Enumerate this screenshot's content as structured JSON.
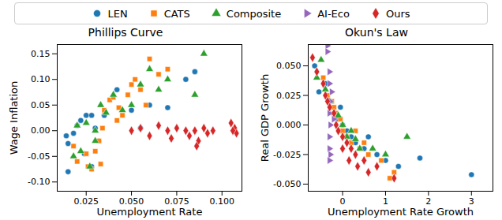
{
  "chart_data": [
    {
      "type": "scatter",
      "title": "Phillips Curve",
      "x_label": "Unemployment Rate",
      "y_label": "Wage Inflation",
      "xlim": [
        0.009,
        0.111
      ],
      "xticks": [
        0.025,
        {
          "value": 0.05,
          "label": "0.050"
        },
        0.075,
        {
          "value": 0.1,
          "label": "0.100"
        }
      ],
      "ylim": [
        -0.118,
        0.168
      ],
      "yticks": [
        {
          "value": -0.1,
          "label": "-0.10"
        },
        -0.05,
        {
          "value": 0,
          "label": "0.00"
        },
        0.05,
        {
          "value": 0.1,
          "label": "0.10"
        },
        0.15
      ],
      "grid": false,
      "series": [
        {
          "name": "LEN",
          "color": "#1f77b4",
          "marker": "circle",
          "x": [
            0.014,
            0.015,
            0.015,
            0.018,
            0.02,
            0.022,
            0.024,
            0.025,
            0.028,
            0.03,
            0.032,
            0.035,
            0.042,
            0.05,
            0.055,
            0.06,
            0.07,
            0.08,
            0.085,
            0.028
          ],
          "y": [
            -0.01,
            -0.025,
            -0.08,
            -0.005,
            0.01,
            0.02,
            -0.045,
            0.03,
            0.03,
            0.005,
            -0.02,
            0.03,
            0.08,
            0.04,
            0.005,
            0.05,
            0.045,
            0.1,
            0.115,
            -0.07
          ]
        },
        {
          "name": "CATS",
          "color": "#ff7f0e",
          "marker": "square",
          "x": [
            0.018,
            0.02,
            0.025,
            0.026,
            0.028,
            0.03,
            0.032,
            0.034,
            0.035,
            0.038,
            0.04,
            0.042,
            0.045,
            0.048,
            0.05,
            0.052,
            0.055,
            0.058,
            0.06,
            0.065,
            0.07,
            0.043,
            0.033
          ],
          "y": [
            -0.03,
            -0.06,
            -0.045,
            -0.07,
            -0.075,
            -0.04,
            -0.02,
            0.005,
            0.04,
            0.06,
            0.065,
            0.02,
            0.03,
            0.07,
            0.09,
            0.1,
            0.08,
            0.05,
            0.14,
            0.11,
            0.12,
            0.045,
            -0.065
          ]
        },
        {
          "name": "Composite",
          "color": "#2ca02c",
          "marker": "triangle",
          "x": [
            0.018,
            0.02,
            0.022,
            0.025,
            0.027,
            0.03,
            0.033,
            0.036,
            0.04,
            0.045,
            0.05,
            0.055,
            0.06,
            0.065,
            0.07,
            0.09,
            0.085,
            0.03
          ],
          "y": [
            -0.05,
            0.01,
            -0.04,
            0.015,
            -0.07,
            0.0,
            0.05,
            0.035,
            0.07,
            0.04,
            0.05,
            0.09,
            0.12,
            0.08,
            0.1,
            0.15,
            0.07,
            -0.02
          ]
        },
        {
          "name": "Ours",
          "color": "#d62728",
          "marker": "diamond",
          "x": [
            0.05,
            0.055,
            0.06,
            0.065,
            0.07,
            0.072,
            0.075,
            0.08,
            0.082,
            0.085,
            0.087,
            0.09,
            0.092,
            0.086,
            0.095,
            0.105,
            0.107,
            0.108,
            0.106
          ],
          "y": [
            0.0,
            0.005,
            -0.01,
            0.01,
            0.0,
            -0.015,
            0.005,
            0.0,
            -0.01,
            0.0,
            -0.02,
            0.005,
            -0.005,
            -0.03,
            0.0,
            0.015,
            0.005,
            -0.005,
            0.0
          ]
        }
      ]
    },
    {
      "type": "scatter",
      "title": "Okun's Law",
      "x_label": "Unemployment Rate Growth",
      "y_label": "Real GDP Growth",
      "xlim": [
        -0.8,
        3.5
      ],
      "xticks": [
        0,
        1,
        2,
        3
      ],
      "ylim": [
        -0.056,
        0.068
      ],
      "yticks": [
        {
          "value": -0.05,
          "label": "-0.050"
        },
        -0.025,
        {
          "value": 0,
          "label": "0.000"
        },
        0.025,
        {
          "value": 0.05,
          "label": "0.050"
        }
      ],
      "grid": false,
      "series": [
        {
          "name": "LEN",
          "color": "#1f77b4",
          "marker": "circle",
          "x": [
            -0.65,
            -0.55,
            -0.4,
            -0.3,
            -0.2,
            -0.1,
            0.0,
            0.1,
            0.2,
            0.3,
            0.5,
            0.8,
            1.0,
            1.3,
            1.8,
            3.0,
            0.6,
            -0.05
          ],
          "y": [
            0.05,
            0.028,
            0.035,
            0.02,
            0.01,
            0.005,
            0.0,
            -0.005,
            -0.01,
            -0.015,
            -0.02,
            -0.025,
            -0.03,
            -0.035,
            -0.028,
            -0.042,
            -0.01,
            0.015
          ]
        },
        {
          "name": "CATS",
          "color": "#ff7f0e",
          "marker": "square",
          "x": [
            -0.45,
            -0.35,
            -0.25,
            -0.15,
            -0.05,
            0.0,
            0.1,
            0.2,
            0.4,
            0.6,
            0.9,
            1.1,
            1.2,
            0.3,
            -0.2,
            0.5
          ],
          "y": [
            0.04,
            0.025,
            0.02,
            0.01,
            0.005,
            -0.005,
            -0.01,
            -0.015,
            -0.02,
            -0.025,
            -0.03,
            -0.045,
            -0.04,
            -0.005,
            0.015,
            -0.015
          ]
        },
        {
          "name": "Composite",
          "color": "#2ca02c",
          "marker": "triangle",
          "x": [
            -0.6,
            -0.4,
            -0.3,
            -0.2,
            -0.1,
            0.0,
            0.1,
            0.2,
            0.4,
            0.7,
            1.0,
            1.5,
            -0.5,
            0.3
          ],
          "y": [
            0.04,
            0.03,
            0.02,
            0.01,
            0.008,
            0.0,
            -0.01,
            -0.005,
            -0.02,
            -0.02,
            -0.025,
            -0.01,
            0.055,
            -0.012
          ]
        },
        {
          "name": "AI-Eco",
          "color": "#9467bd",
          "marker": "triangle-right",
          "x": [
            -0.3,
            -0.3,
            -0.25,
            -0.28,
            -0.3,
            -0.28,
            -0.3,
            -0.3,
            -0.28,
            -0.3,
            -0.35,
            -0.35,
            -0.2
          ],
          "y": [
            0.045,
            0.035,
            0.028,
            0.02,
            0.01,
            0.0,
            -0.01,
            -0.02,
            -0.025,
            -0.03,
            0.067,
            0.062,
            0.005
          ]
        },
        {
          "name": "Ours",
          "color": "#d62728",
          "marker": "diamond",
          "x": [
            -0.7,
            -0.6,
            -0.45,
            -0.4,
            -0.35,
            -0.3,
            -0.2,
            -0.15,
            -0.1,
            0.0,
            0.1,
            0.2,
            0.3,
            0.35,
            0.5,
            0.6,
            0.8,
            1.2,
            0.0,
            0.15
          ],
          "y": [
            0.057,
            0.045,
            0.035,
            0.025,
            0.02,
            0.015,
            0.01,
            0.0,
            -0.005,
            -0.01,
            -0.015,
            -0.02,
            -0.025,
            -0.035,
            -0.03,
            -0.04,
            -0.035,
            -0.045,
            -0.02,
            -0.03
          ]
        }
      ]
    }
  ]
}
